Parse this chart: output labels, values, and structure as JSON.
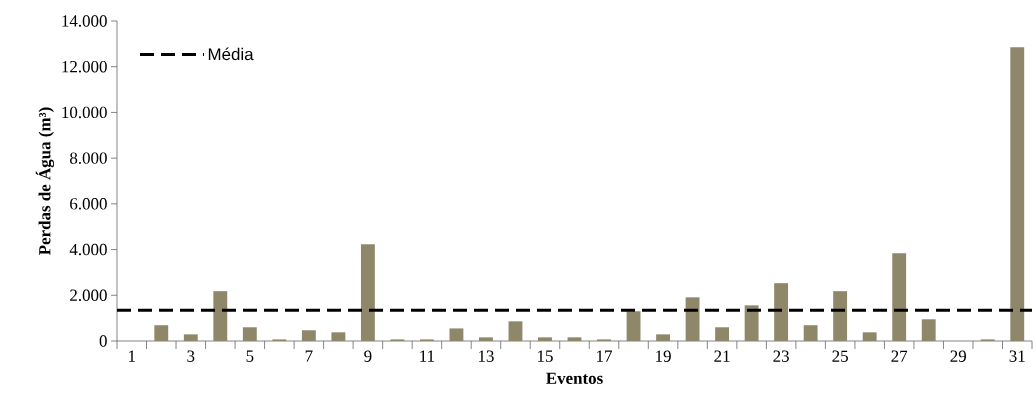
{
  "chart_data": {
    "type": "bar",
    "xlabel": "Eventos",
    "ylabel": "Perdas de Água (m³)",
    "categories": [
      "1",
      null,
      "3",
      null,
      "5",
      null,
      "7",
      null,
      "9",
      null,
      "11",
      null,
      "13",
      null,
      "15",
      null,
      "17",
      null,
      "19",
      null,
      "21",
      null,
      "23",
      null,
      "25",
      null,
      "27",
      null,
      "29",
      null,
      "31"
    ],
    "values": [
      0,
      690,
      290,
      2180,
      600,
      70,
      470,
      380,
      4230,
      70,
      70,
      550,
      160,
      860,
      160,
      160,
      70,
      1300,
      290,
      1910,
      600,
      1560,
      2530,
      690,
      2180,
      380,
      3840,
      950,
      0,
      70,
      12850
    ],
    "color": "#8f8769",
    "ylim": [
      0,
      14000
    ],
    "yticks": [
      0,
      {
        "value": 2000,
        "label": "2.000"
      },
      {
        "value": 4000,
        "label": "4.000"
      },
      {
        "value": 6000,
        "label": "6.000"
      },
      {
        "value": 8000,
        "label": "8.000"
      },
      {
        "value": 10000,
        "label": "10.000"
      },
      {
        "value": 12000,
        "label": "12.000"
      },
      {
        "value": 14000,
        "label": "14.000"
      }
    ],
    "ref_lines": [
      {
        "axis": "y",
        "value": 1350,
        "label": "Média",
        "color": "#000000",
        "line_style": "dashed"
      }
    ],
    "legend": "top left",
    "grid": false
  }
}
